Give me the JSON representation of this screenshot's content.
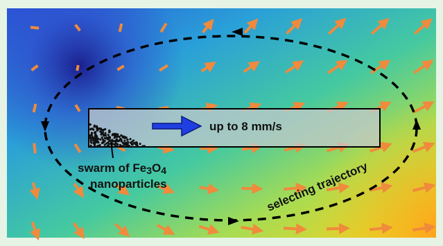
{
  "labels": {
    "speed": "up to 8 mm/s",
    "swarm_line1": [
      "swarm of Fe",
      "3",
      "O",
      "4"
    ],
    "swarm_line2": "nanoparticles",
    "trajectory": "selecting trajectory"
  }
}
